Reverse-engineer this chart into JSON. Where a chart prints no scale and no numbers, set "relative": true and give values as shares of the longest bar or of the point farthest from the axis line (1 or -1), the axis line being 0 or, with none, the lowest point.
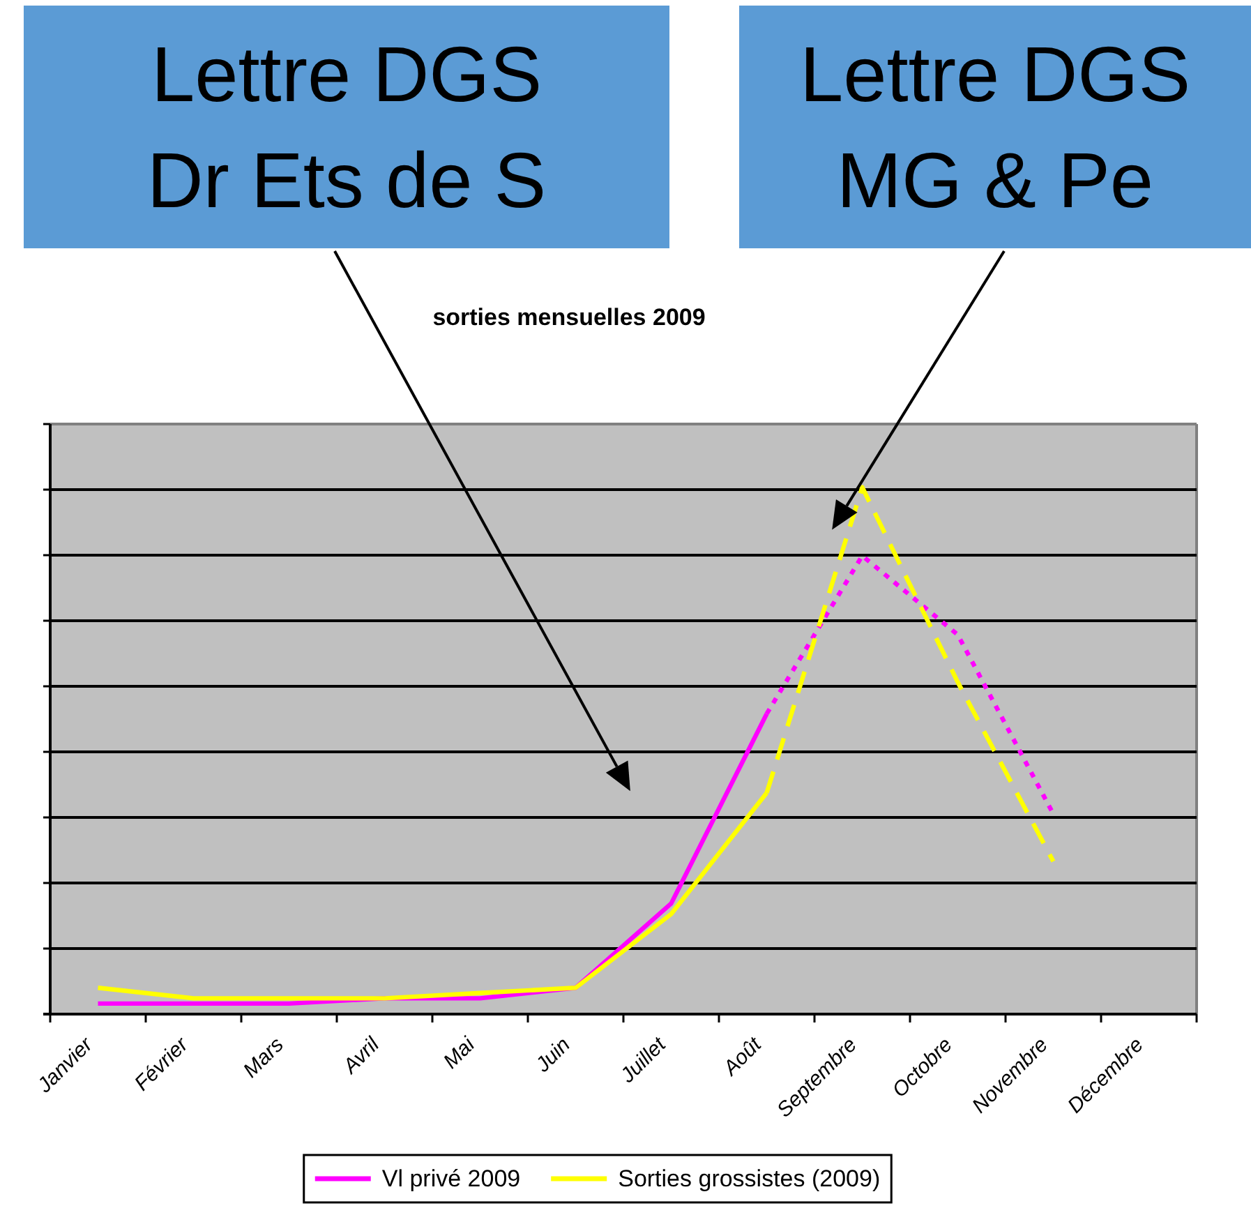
{
  "chart_data": {
    "type": "line",
    "title": "sorties mensuelles 2009",
    "categories": [
      "Janvier",
      "Février",
      "Mars",
      "Avril",
      "Mai",
      "Juin",
      "Juillet",
      "Août",
      "Septembre",
      "Octobre",
      "Novembre",
      "Décembre"
    ],
    "relative": true,
    "series": [
      {
        "name": "Vl privé 2009",
        "color": "#ff00ff",
        "line_style": "solid",
        "values": [
          0.02,
          0.02,
          0.02,
          0.03,
          0.03,
          0.05,
          0.21,
          0.57,
          null,
          null,
          null,
          null
        ]
      },
      {
        "name": "Sorties grossistes (2009)",
        "color": "#ffff00",
        "line_style": "solid",
        "values": [
          0.05,
          0.03,
          0.03,
          0.03,
          0.04,
          0.05,
          0.19,
          0.42,
          null,
          null,
          null,
          null
        ]
      },
      {
        "color": "#ff00ff",
        "line_style": "dotted",
        "values": [
          null,
          null,
          null,
          null,
          null,
          null,
          null,
          0.57,
          0.87,
          0.72,
          0.38,
          null
        ]
      },
      {
        "color": "#ffff00",
        "line_style": "dashed",
        "values": [
          null,
          null,
          null,
          null,
          null,
          null,
          null,
          0.42,
          1,
          0.63,
          0.29,
          null
        ]
      }
    ],
    "annotations": [
      "Lettre DGS\nDr Ets de S",
      "Lettre DGS\nMG & Pe"
    ],
    "grid": "y",
    "legend": "bottom"
  }
}
